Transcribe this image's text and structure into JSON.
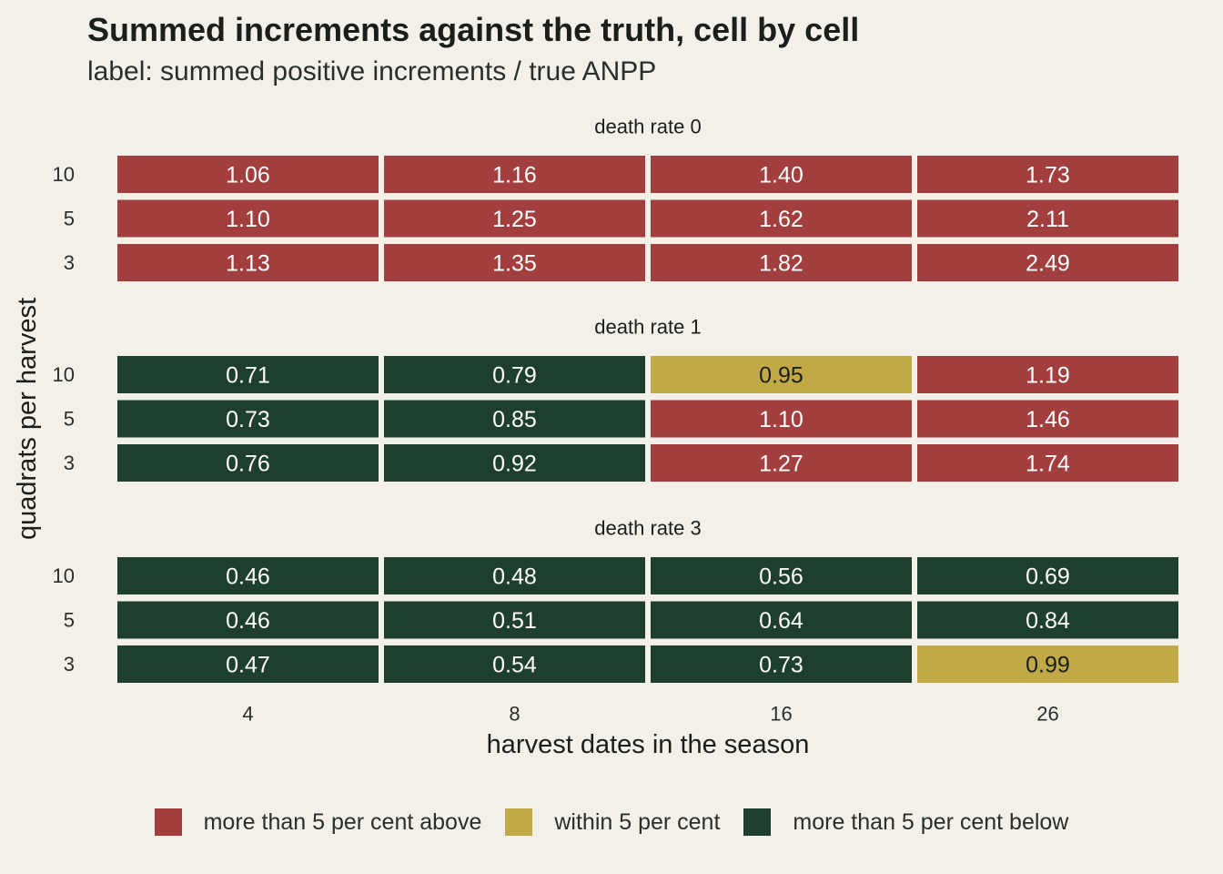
{
  "title": "Summed increments against the truth, cell by cell",
  "subtitle": "label: summed positive increments / true ANPP",
  "chart_data": {
    "type": "heatmap",
    "xlabel": "harvest dates in the season",
    "ylabel": "quadrats per harvest",
    "x_categories": [
      "4",
      "8",
      "16",
      "26"
    ],
    "y_categories": [
      "10",
      "5",
      "3"
    ],
    "panels": [
      {
        "label": "death rate 0",
        "rows": [
          {
            "quadrats": "10",
            "values": [
              1.06,
              1.16,
              1.4,
              1.73
            ],
            "labels": [
              "1.06",
              "1.16",
              "1.40",
              "1.73"
            ]
          },
          {
            "quadrats": "5",
            "values": [
              1.1,
              1.25,
              1.62,
              2.11
            ],
            "labels": [
              "1.10",
              "1.25",
              "1.62",
              "2.11"
            ]
          },
          {
            "quadrats": "3",
            "values": [
              1.13,
              1.35,
              1.82,
              2.49
            ],
            "labels": [
              "1.13",
              "1.35",
              "1.82",
              "2.49"
            ]
          }
        ]
      },
      {
        "label": "death rate 1",
        "rows": [
          {
            "quadrats": "10",
            "values": [
              0.71,
              0.79,
              0.95,
              1.19
            ],
            "labels": [
              "0.71",
              "0.79",
              "0.95",
              "1.19"
            ]
          },
          {
            "quadrats": "5",
            "values": [
              0.73,
              0.85,
              1.1,
              1.46
            ],
            "labels": [
              "0.73",
              "0.85",
              "1.10",
              "1.46"
            ]
          },
          {
            "quadrats": "3",
            "values": [
              0.76,
              0.92,
              1.27,
              1.74
            ],
            "labels": [
              "0.76",
              "0.92",
              "1.27",
              "1.74"
            ]
          }
        ]
      },
      {
        "label": "death rate 3",
        "rows": [
          {
            "quadrats": "10",
            "values": [
              0.46,
              0.48,
              0.56,
              0.69
            ],
            "labels": [
              "0.46",
              "0.48",
              "0.56",
              "0.69"
            ]
          },
          {
            "quadrats": "5",
            "values": [
              0.46,
              0.51,
              0.64,
              0.84
            ],
            "labels": [
              "0.46",
              "0.51",
              "0.64",
              "0.84"
            ]
          },
          {
            "quadrats": "3",
            "values": [
              0.47,
              0.54,
              0.73,
              0.99
            ],
            "labels": [
              "0.47",
              "0.54",
              "0.73",
              "0.99"
            ]
          }
        ]
      }
    ],
    "color_classes": [
      {
        "key": "above",
        "label": "more than 5 per cent above",
        "color": "#a23e3e",
        "text_color": "#ffffff"
      },
      {
        "key": "within",
        "label": "within 5 per cent",
        "color": "#c1a947",
        "text_color": "#1a1f1c"
      },
      {
        "key": "below",
        "label": "more than 5 per cent below",
        "color": "#1f3f2e",
        "text_color": "#ffffff"
      }
    ],
    "legend_position": "bottom"
  }
}
